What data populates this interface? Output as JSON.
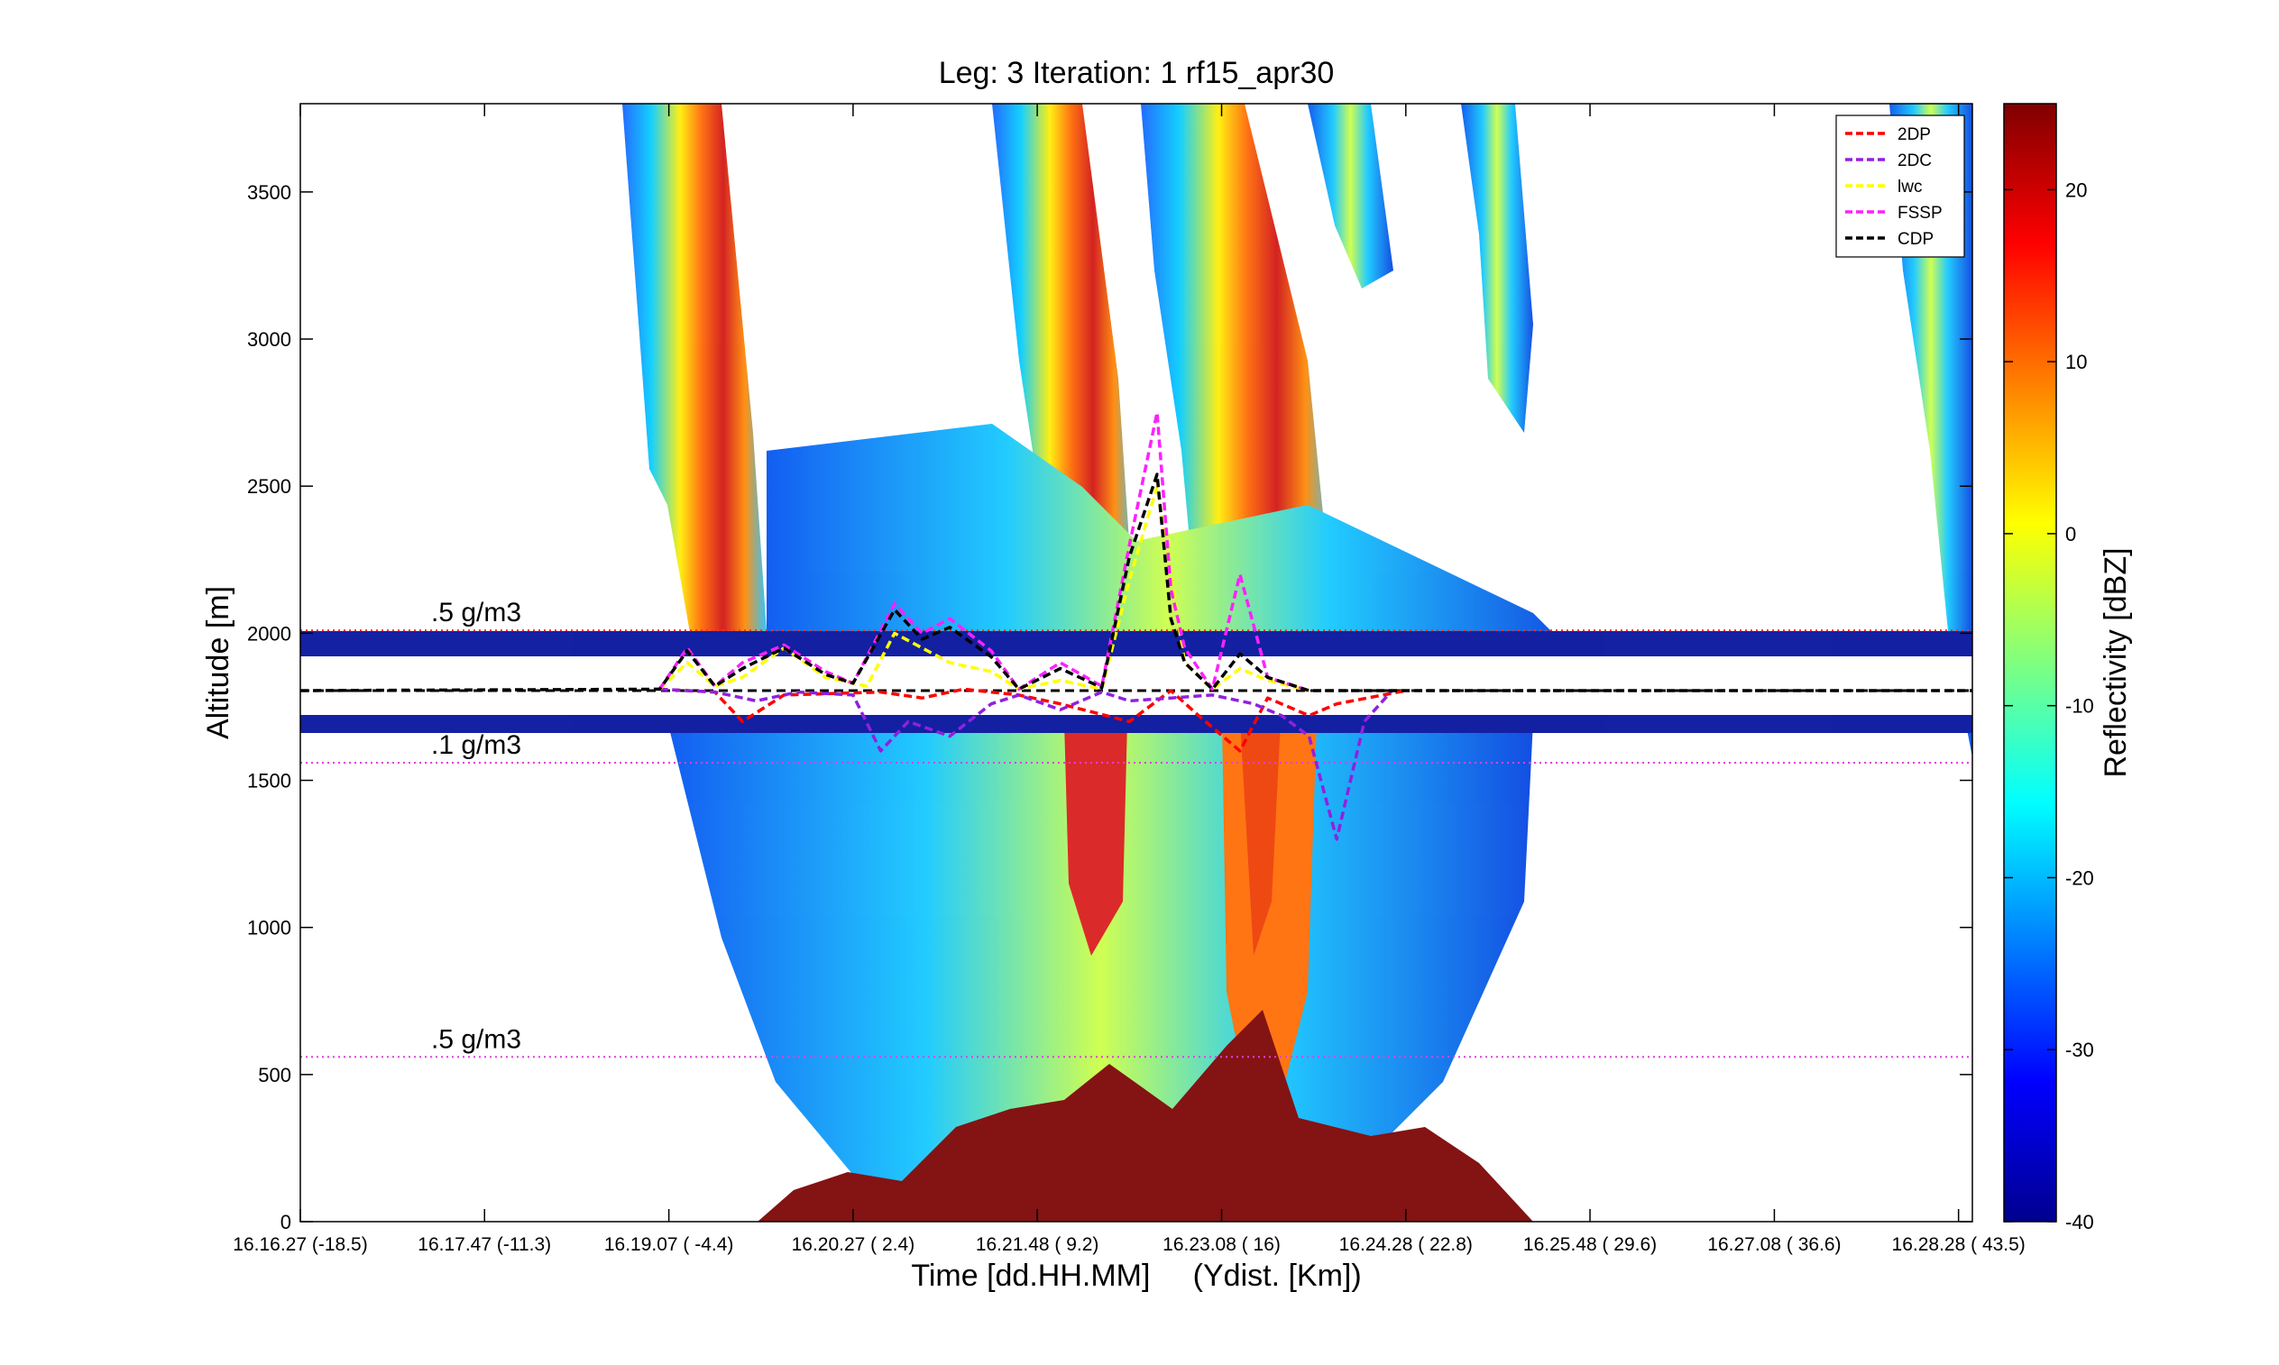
{
  "chart_data": {
    "type": "heatmap",
    "title": "Leg: 3  Iteration: 1  rf15_apr30",
    "xlabel": "Time [dd.HH.MM]     (Ydist. [Km])",
    "ylabel": "Altitude [m]",
    "ylim": [
      0,
      3800
    ],
    "yticks": [
      0,
      500,
      1000,
      1500,
      2000,
      2500,
      3000,
      3500
    ],
    "xlim": [
      0,
      12.1
    ],
    "xticks": [
      {
        "pos": 0,
        "label": "16.16.27   (-18.5)"
      },
      {
        "pos": 1.333,
        "label": "16.17.47   (-11.3)"
      },
      {
        "pos": 2.667,
        "label": "16.19.07   ( -4.4)"
      },
      {
        "pos": 4,
        "label": "16.20.27   (  2.4)"
      },
      {
        "pos": 5.333,
        "label": "16.21.48   (  9.2)"
      },
      {
        "pos": 6.667,
        "label": "16.23.08   (   16)"
      },
      {
        "pos": 8,
        "label": "16.24.28   ( 22.8)"
      },
      {
        "pos": 9.333,
        "label": "16.25.48   ( 29.6)"
      },
      {
        "pos": 10.667,
        "label": "16.27.08   ( 36.6)"
      },
      {
        "pos": 12,
        "label": "16.28.28   ( 43.5)"
      }
    ],
    "colorbar": {
      "label": "Reflectivity [dBZ]",
      "range": [
        -40,
        25
      ],
      "ticks": [
        -40,
        -30,
        -20,
        -10,
        0,
        10,
        20
      ],
      "colormap": "jet"
    },
    "reference_lines": [
      {
        "y": 2010,
        "color": "#ff3030",
        "label": ".5 g/m3"
      },
      {
        "y": 1560,
        "color": "#e040e0",
        "label": ".1 g/m3"
      },
      {
        "y": 560,
        "color": "#e040e0",
        "label": ".5 g/m3"
      }
    ],
    "gap_band": {
      "ymin": 1700,
      "ymax": 1940,
      "flight_level": 1805
    },
    "series": [
      {
        "name": "2DP",
        "color": "#ff0000",
        "style": "dashed",
        "x": [
          2.6,
          3.0,
          3.2,
          3.5,
          4.2,
          4.5,
          4.8,
          5.2,
          5.5,
          6.0,
          6.3,
          6.5,
          6.8,
          7.0,
          7.3,
          7.5,
          8.0
        ],
        "values": [
          1810,
          1800,
          1700,
          1790,
          1800,
          1780,
          1810,
          1790,
          1760,
          1700,
          1805,
          1720,
          1600,
          1780,
          1720,
          1760,
          1805
        ]
      },
      {
        "name": "2DC",
        "color": "#9020e0",
        "style": "dashed",
        "x": [
          2.6,
          3.0,
          3.3,
          3.6,
          4.0,
          4.2,
          4.4,
          4.7,
          5.0,
          5.2,
          5.5,
          5.8,
          6.0,
          6.3,
          6.6,
          6.9,
          7.1,
          7.3,
          7.5,
          7.7,
          7.9
        ],
        "values": [
          1810,
          1800,
          1770,
          1800,
          1790,
          1600,
          1700,
          1650,
          1760,
          1790,
          1740,
          1800,
          1770,
          1780,
          1790,
          1760,
          1720,
          1650,
          1300,
          1700,
          1805
        ]
      },
      {
        "name": "lwc",
        "color": "#ffff00",
        "style": "dashed",
        "x": [
          2.6,
          2.8,
          3.0,
          3.2,
          3.5,
          3.8,
          4.1,
          4.3,
          4.5,
          4.7,
          5.0,
          5.2,
          5.5,
          5.8,
          6.0,
          6.2,
          6.4,
          6.6,
          6.8,
          7.0,
          7.3
        ],
        "values": [
          1810,
          1900,
          1820,
          1850,
          1950,
          1850,
          1820,
          2000,
          1950,
          1900,
          1870,
          1810,
          1840,
          1810,
          2180,
          2500,
          1900,
          1810,
          1880,
          1840,
          1805
        ]
      },
      {
        "name": "FSSP",
        "color": "#ff20ff",
        "style": "dashed",
        "x": [
          2.6,
          2.8,
          3.0,
          3.2,
          3.5,
          3.8,
          4.0,
          4.3,
          4.5,
          4.7,
          5.0,
          5.2,
          5.5,
          5.8,
          6.0,
          6.2,
          6.3,
          6.4,
          6.6,
          6.8,
          7.0,
          7.3
        ],
        "values": [
          1810,
          1950,
          1820,
          1900,
          1960,
          1870,
          1830,
          2100,
          2000,
          2050,
          1940,
          1810,
          1900,
          1820,
          2300,
          2750,
          2150,
          1950,
          1810,
          2200,
          1850,
          1805
        ]
      },
      {
        "name": "CDP",
        "color": "#000000",
        "style": "dashed",
        "x": [
          0,
          2.6,
          2.8,
          3.0,
          3.2,
          3.5,
          3.8,
          4.0,
          4.3,
          4.5,
          4.7,
          5.0,
          5.2,
          5.5,
          5.8,
          6.0,
          6.2,
          6.3,
          6.4,
          6.6,
          6.8,
          7.0,
          7.3,
          12.1
        ],
        "values": [
          1805,
          1810,
          1940,
          1820,
          1880,
          1950,
          1860,
          1830,
          2080,
          1980,
          2020,
          1920,
          1810,
          1880,
          1815,
          2260,
          2540,
          2050,
          1900,
          1810,
          1930,
          1850,
          1805,
          1805
        ]
      }
    ],
    "legend": {
      "placement": "top-right",
      "entries": [
        "2DP",
        "2DC",
        "lwc",
        "FSSP",
        "CDP"
      ]
    }
  }
}
